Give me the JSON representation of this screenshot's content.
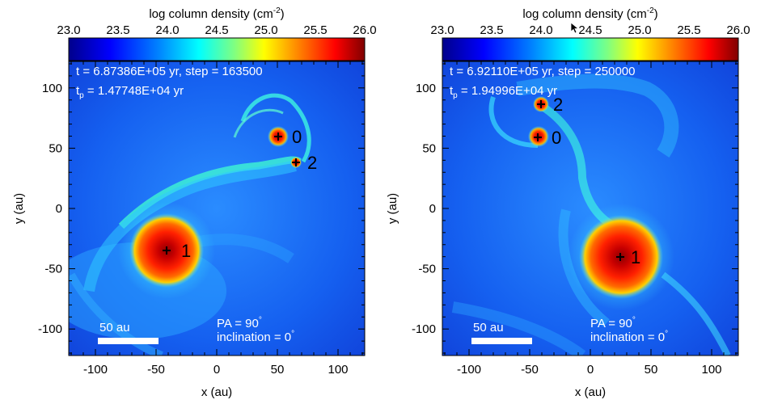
{
  "chart_data": {
    "type": "heatmap",
    "colorbar": {
      "label_main": "log column density (cm",
      "label_exp": "-2",
      "label_close": ")",
      "range": [
        23.0,
        26.0
      ],
      "ticks": [
        "23.0",
        "23.5",
        "24.0",
        "24.5",
        "25.0",
        "25.5",
        "26.0"
      ],
      "colormap": [
        "#00008b",
        "#0000ff",
        "#0080ff",
        "#00ffff",
        "#80ff80",
        "#ffff00",
        "#ff8000",
        "#ff0000",
        "#800000"
      ]
    },
    "panels": [
      {
        "id": "left",
        "time": "t = 6.87386E+05 yr, step = 163500",
        "tp_prefix": "t",
        "tp_sub": "p",
        "tp_value": " = 1.47748E+04 yr",
        "xlabel": "x (au)",
        "ylabel": "y (au)",
        "xlim": [
          -122,
          122
        ],
        "ylim": [
          -122,
          122
        ],
        "xticks": [
          "-100",
          "-50",
          "0",
          "50",
          "100"
        ],
        "yticks": [
          "100",
          "50",
          "0",
          "-50",
          "-100"
        ],
        "scale_bar": "50 au",
        "pa_text": "PA = 90",
        "inc_text": "inclination = 0",
        "deg": "°",
        "sinks": [
          {
            "label": "1",
            "x": -40,
            "y": -35,
            "disk_radius": 30
          },
          {
            "label": "0",
            "x": 52,
            "y": 59,
            "disk_radius": 8
          },
          {
            "label": "2",
            "x": 66,
            "y": 38,
            "disk_radius": 4
          }
        ]
      },
      {
        "id": "right",
        "time": "t = 6.92110E+05 yr, step = 250000",
        "tp_prefix": "t",
        "tp_sub": "p",
        "tp_value": " = 1.94996E+04 yr",
        "xlabel": "x (au)",
        "ylabel": "y (au)",
        "xlim": [
          -122,
          122
        ],
        "ylim": [
          -122,
          122
        ],
        "xticks": [
          "-100",
          "-50",
          "0",
          "50",
          "100"
        ],
        "yticks": [
          "100",
          "50",
          "0",
          "-50",
          "-100"
        ],
        "scale_bar": "50 au",
        "pa_text": "PA = 90",
        "inc_text": "inclination = 0",
        "deg": "°",
        "sinks": [
          {
            "label": "1",
            "x": 25,
            "y": -40,
            "disk_radius": 32
          },
          {
            "label": "0",
            "x": -43,
            "y": 59,
            "disk_radius": 8
          },
          {
            "label": "2",
            "x": -40,
            "y": 86,
            "disk_radius": 6
          }
        ]
      }
    ]
  }
}
